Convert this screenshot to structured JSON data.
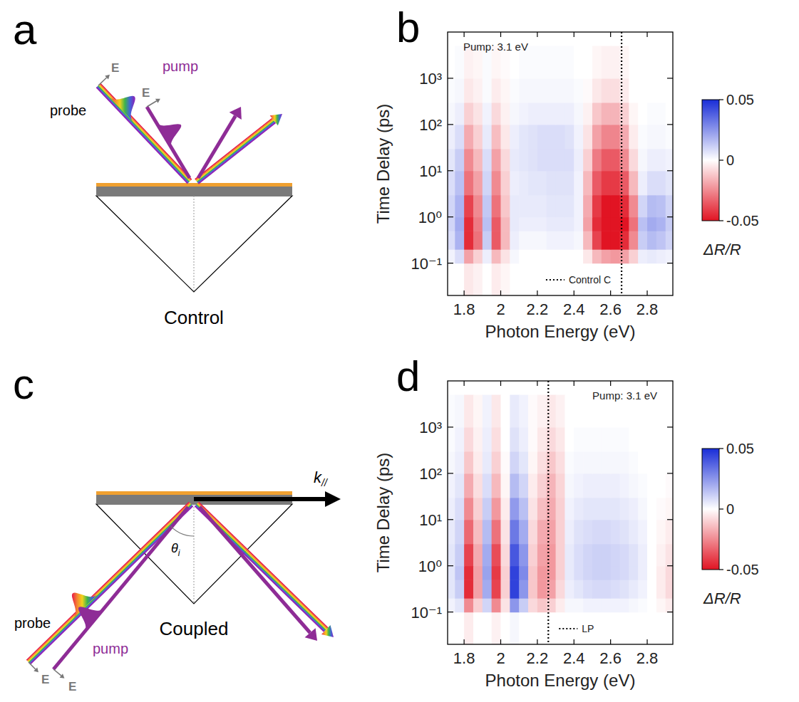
{
  "schematics": [
    {
      "panel": "a",
      "caption": "Control",
      "probe": "probe",
      "pump": "pump",
      "field": "E"
    },
    {
      "panel": "c",
      "caption": "Coupled",
      "probe": "probe",
      "pump": "pump",
      "field": "E",
      "wavevector": {
        "base": "k",
        "sub": "//"
      },
      "angle": {
        "base": "θ",
        "sub": "i"
      }
    }
  ],
  "chart_data": [
    {
      "type": "heatmap",
      "panel": "b",
      "annotation": "Pump: 3.1 eV",
      "xlabel": "Photon Energy (eV)",
      "ylabel": "Time Delay (ps)",
      "xlim": [
        1.71,
        2.94
      ],
      "ylim": [
        0.02,
        10000
      ],
      "log": "y",
      "xticks": [
        1.8,
        2,
        2.2,
        2.4,
        2.6,
        2.8
      ],
      "yticks": [
        {
          "value": 0.1,
          "label": "10⁻¹"
        },
        {
          "value": 1,
          "label": "10⁰"
        },
        {
          "value": 10,
          "label": "10¹"
        },
        {
          "value": 100,
          "label": "10²"
        },
        {
          "value": 1000,
          "label": "10³"
        }
      ],
      "vline": {
        "x": 2.66,
        "label": "Control C"
      },
      "colorbar": {
        "range": [
          -0.05,
          0.05
        ],
        "ticks": [
          0.05,
          0,
          -0.05
        ],
        "label": "ΔR/R"
      },
      "x_edges": [
        1.7,
        1.75,
        1.8,
        1.85,
        1.9,
        1.95,
        2,
        2.05,
        2.1,
        2.15,
        2.2,
        2.25,
        2.3,
        2.35,
        2.4,
        2.45,
        2.5,
        2.55,
        2.6,
        2.65,
        2.7,
        2.75,
        2.8,
        2.85,
        2.9,
        2.95
      ],
      "y_edges": [
        0.02,
        0.1,
        0.2,
        0.5,
        1,
        3,
        10,
        30,
        100,
        300,
        1000,
        5000
      ],
      "z": [
        [
          0,
          0,
          -0.005,
          -0.003,
          0,
          -0.004,
          -0.002,
          0,
          0,
          0,
          0,
          0,
          0,
          0,
          0,
          0,
          0,
          0,
          0,
          0,
          0,
          0,
          0,
          0,
          0
        ],
        [
          0.003,
          0.008,
          -0.02,
          -0.01,
          0.004,
          -0.015,
          -0.006,
          0.002,
          0,
          0,
          0,
          0,
          0,
          0,
          0,
          -0.005,
          -0.015,
          -0.02,
          -0.022,
          -0.02,
          -0.01,
          0.004,
          0.005,
          0.004,
          0.003
        ],
        [
          0.008,
          0.018,
          -0.045,
          -0.03,
          0.012,
          -0.035,
          -0.015,
          0.004,
          0.002,
          0.002,
          0.002,
          0.003,
          0.003,
          0.003,
          0.002,
          -0.015,
          -0.04,
          -0.05,
          -0.05,
          -0.045,
          -0.025,
          0.012,
          0.016,
          0.014,
          0.01
        ],
        [
          0.01,
          0.02,
          -0.045,
          -0.028,
          0.015,
          -0.035,
          -0.015,
          0.005,
          0.004,
          0.004,
          0.004,
          0.005,
          0.005,
          0.005,
          0.003,
          -0.02,
          -0.045,
          -0.055,
          -0.055,
          -0.05,
          -0.03,
          0.015,
          0.02,
          0.018,
          0.012
        ],
        [
          0.01,
          0.018,
          -0.04,
          -0.025,
          0.013,
          -0.03,
          -0.012,
          0.005,
          0.005,
          0.005,
          0.005,
          0.006,
          0.006,
          0.006,
          0.003,
          -0.018,
          -0.042,
          -0.05,
          -0.05,
          -0.045,
          -0.025,
          0.01,
          0.016,
          0.015,
          0.01
        ],
        [
          0.008,
          0.015,
          -0.03,
          -0.02,
          0.01,
          -0.025,
          -0.01,
          0.004,
          0.005,
          0.006,
          0.006,
          0.007,
          0.007,
          0.007,
          0.003,
          -0.015,
          -0.035,
          -0.042,
          -0.042,
          -0.035,
          -0.015,
          0.004,
          0.008,
          0.008,
          0.006
        ],
        [
          0.006,
          0.012,
          -0.025,
          -0.015,
          0.008,
          -0.02,
          -0.008,
          0.005,
          0.006,
          0.007,
          0.008,
          0.008,
          0.008,
          0.008,
          0.004,
          -0.01,
          -0.028,
          -0.035,
          -0.035,
          -0.025,
          -0.008,
          0.002,
          0.004,
          0.004,
          0.003
        ],
        [
          0.004,
          0.008,
          -0.018,
          -0.01,
          0.005,
          -0.014,
          -0.005,
          0.004,
          0.006,
          0.007,
          0.008,
          0.008,
          0.008,
          0.007,
          0.003,
          -0.006,
          -0.02,
          -0.026,
          -0.026,
          -0.018,
          -0.004,
          0.001,
          0.002,
          0.002,
          0.001
        ],
        [
          0.002,
          0.004,
          -0.01,
          -0.006,
          0.003,
          -0.008,
          -0.003,
          0.002,
          0.003,
          0.004,
          0.004,
          0.004,
          0.004,
          0.004,
          0.002,
          -0.003,
          -0.012,
          -0.016,
          -0.016,
          -0.01,
          -0.002,
          0,
          0.001,
          0.001,
          0
        ],
        [
          0.001,
          0.002,
          -0.005,
          -0.003,
          0.001,
          -0.004,
          -0.002,
          0.001,
          0.002,
          0.002,
          0.002,
          0.002,
          0.002,
          0.002,
          0.001,
          -0.001,
          -0.005,
          -0.007,
          -0.007,
          -0.004,
          0,
          0,
          0,
          0,
          0
        ],
        [
          0,
          0.001,
          -0.003,
          -0.002,
          0.001,
          -0.002,
          -0.001,
          0,
          0.001,
          0.001,
          0.001,
          0.001,
          0.001,
          0.001,
          0,
          0,
          -0.002,
          -0.003,
          -0.003,
          -0.002,
          0,
          0,
          0,
          0,
          0
        ]
      ]
    },
    {
      "type": "heatmap",
      "panel": "d",
      "annotation": "Pump: 3.1 eV",
      "xlabel": "Photon Energy (eV)",
      "ylabel": "Time Delay (ps)",
      "xlim": [
        1.71,
        2.94
      ],
      "ylim": [
        0.02,
        10000
      ],
      "log": "y",
      "xticks": [
        1.8,
        2,
        2.2,
        2.4,
        2.6,
        2.8
      ],
      "yticks": [
        {
          "value": 0.1,
          "label": "10⁻¹"
        },
        {
          "value": 1,
          "label": "10⁰"
        },
        {
          "value": 10,
          "label": "10¹"
        },
        {
          "value": 100,
          "label": "10²"
        },
        {
          "value": 1000,
          "label": "10³"
        }
      ],
      "vline": {
        "x": 2.26,
        "label": "LP"
      },
      "colorbar": {
        "range": [
          -0.05,
          0.05
        ],
        "ticks": [
          0.05,
          0,
          -0.05
        ],
        "label": "ΔR/R"
      },
      "x_edges": [
        1.7,
        1.75,
        1.8,
        1.85,
        1.9,
        1.95,
        2,
        2.05,
        2.1,
        2.15,
        2.2,
        2.25,
        2.3,
        2.35,
        2.4,
        2.45,
        2.5,
        2.55,
        2.6,
        2.65,
        2.7,
        2.75,
        2.8,
        2.85,
        2.9,
        2.95
      ],
      "y_edges": [
        0.02,
        0.1,
        0.2,
        0.5,
        1,
        3,
        10,
        30,
        100,
        300,
        1000,
        5000
      ],
      "z": [
        [
          0,
          0,
          -0.004,
          0,
          0,
          -0.003,
          0,
          0.002,
          0,
          0,
          0,
          0,
          0,
          0,
          0,
          0,
          0,
          0,
          0,
          0,
          0,
          0,
          0,
          0,
          0
        ],
        [
          0.003,
          0.006,
          -0.025,
          -0.01,
          0.01,
          -0.025,
          -0.006,
          0.025,
          0.012,
          -0.008,
          -0.012,
          -0.01,
          -0.004,
          0.002,
          0.002,
          0.003,
          0.003,
          0.003,
          0.003,
          0.003,
          0.002,
          0.001,
          0,
          -0.002,
          -0.004
        ],
        [
          0.006,
          0.012,
          -0.045,
          -0.02,
          0.02,
          -0.04,
          -0.01,
          0.045,
          0.025,
          -0.012,
          -0.022,
          -0.02,
          -0.008,
          0.004,
          0.006,
          0.008,
          0.009,
          0.009,
          0.008,
          0.007,
          0.005,
          0.003,
          0,
          -0.004,
          -0.008
        ],
        [
          0.006,
          0.014,
          -0.045,
          -0.02,
          0.022,
          -0.042,
          -0.01,
          0.045,
          0.028,
          -0.012,
          -0.022,
          -0.022,
          -0.01,
          0.005,
          0.008,
          0.01,
          0.011,
          0.011,
          0.01,
          0.009,
          0.007,
          0.004,
          0,
          -0.004,
          -0.008
        ],
        [
          0.006,
          0.012,
          -0.04,
          -0.018,
          0.02,
          -0.038,
          -0.008,
          0.04,
          0.025,
          -0.01,
          -0.02,
          -0.022,
          -0.01,
          0.005,
          0.008,
          0.01,
          0.011,
          0.011,
          0.01,
          0.009,
          0.007,
          0.004,
          0,
          -0.003,
          -0.006
        ],
        [
          0.005,
          0.01,
          -0.032,
          -0.014,
          0.016,
          -0.03,
          -0.006,
          0.032,
          0.02,
          -0.008,
          -0.018,
          -0.02,
          -0.01,
          0.004,
          0.007,
          0.008,
          0.009,
          0.009,
          0.008,
          0.007,
          0.005,
          0.003,
          0,
          -0.002,
          -0.004
        ],
        [
          0.004,
          0.008,
          -0.025,
          -0.01,
          0.012,
          -0.022,
          -0.004,
          0.024,
          0.015,
          -0.006,
          -0.014,
          -0.018,
          -0.01,
          0.003,
          0.005,
          0.006,
          0.006,
          0.006,
          0.006,
          0.005,
          0.004,
          0.002,
          0,
          -0.001,
          -0.002
        ],
        [
          0.003,
          0.006,
          -0.018,
          -0.007,
          0.008,
          -0.015,
          -0.002,
          0.016,
          0.01,
          -0.004,
          -0.01,
          -0.016,
          -0.009,
          0.002,
          0.003,
          0.004,
          0.004,
          0.004,
          0.004,
          0.003,
          0.002,
          0.001,
          0,
          0,
          -0.001
        ],
        [
          0.002,
          0.004,
          -0.012,
          -0.004,
          0.005,
          -0.01,
          -0.001,
          0.01,
          0.006,
          -0.002,
          -0.007,
          -0.012,
          -0.007,
          0.001,
          0.002,
          0.002,
          0.002,
          0.002,
          0.002,
          0.002,
          0.001,
          0,
          0,
          0,
          0
        ],
        [
          0.001,
          0.003,
          -0.008,
          -0.003,
          0.004,
          -0.007,
          0,
          0.007,
          0.004,
          -0.001,
          -0.005,
          -0.008,
          -0.005,
          0,
          0.001,
          0.001,
          0.001,
          0.001,
          0.001,
          0.001,
          0,
          0,
          0,
          0,
          0
        ],
        [
          0.001,
          0.002,
          -0.005,
          -0.002,
          0.003,
          -0.005,
          0,
          0.005,
          0.003,
          -0.001,
          -0.003,
          -0.005,
          -0.003,
          0,
          0,
          0,
          0,
          0,
          0,
          0,
          0,
          0,
          0,
          0,
          0
        ]
      ]
    }
  ]
}
